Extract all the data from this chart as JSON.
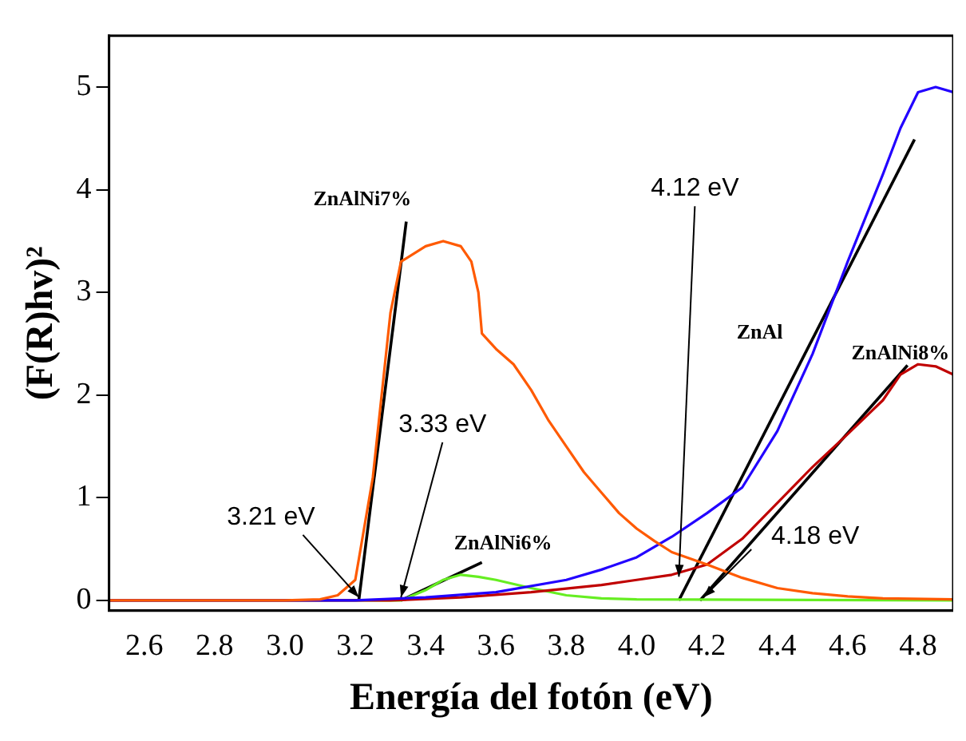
{
  "chart_data": {
    "type": "line",
    "xlabel": "Energía del fotón (eV)",
    "ylabel": "(F(R)hv)²",
    "xlim": [
      2.5,
      4.9
    ],
    "ylim": [
      -0.1,
      5.5
    ],
    "xticks": [
      2.6,
      2.8,
      {
        "value": 3.0,
        "label": "3.0"
      },
      3.2,
      3.4,
      3.6,
      3.8,
      {
        "value": 4.0,
        "label": "4.0"
      },
      4.2,
      4.4,
      4.6,
      4.8
    ],
    "yticks": [
      0,
      1,
      2,
      3,
      4,
      5
    ],
    "grid": false,
    "legend": false,
    "marker": "none",
    "line_style": "solid",
    "series": [
      {
        "name": "ZnAlNi7%",
        "color": "#ff5a00",
        "x": [
          2.5,
          3.0,
          3.1,
          3.15,
          3.2,
          3.25,
          3.3,
          3.33,
          3.4,
          3.45,
          3.5,
          3.53,
          3.55,
          3.56,
          3.6,
          3.65,
          3.7,
          3.75,
          3.8,
          3.85,
          3.9,
          3.95,
          4.0,
          4.05,
          4.1,
          4.2,
          4.3,
          4.4,
          4.5,
          4.6,
          4.7,
          4.9
        ],
        "values": [
          0,
          0,
          0.01,
          0.05,
          0.2,
          1.2,
          2.8,
          3.3,
          3.45,
          3.5,
          3.45,
          3.3,
          3.0,
          2.6,
          2.45,
          2.3,
          2.05,
          1.75,
          1.5,
          1.25,
          1.05,
          0.85,
          0.7,
          0.58,
          0.47,
          0.35,
          0.22,
          0.12,
          0.07,
          0.04,
          0.02,
          0.01
        ]
      },
      {
        "name": "ZnAl",
        "color": "#2200ff",
        "x": [
          2.5,
          3.2,
          3.4,
          3.6,
          3.8,
          3.9,
          4.0,
          4.1,
          4.2,
          4.3,
          4.4,
          4.5,
          4.6,
          4.7,
          4.75,
          4.8,
          4.85,
          4.9
        ],
        "values": [
          0,
          0,
          0.03,
          0.08,
          0.2,
          0.3,
          0.42,
          0.62,
          0.85,
          1.1,
          1.65,
          2.4,
          3.3,
          4.15,
          4.6,
          4.95,
          5.0,
          4.95
        ]
      },
      {
        "name": "ZnAlNi8%",
        "color": "#c00000",
        "x": [
          2.5,
          3.3,
          3.5,
          3.7,
          3.9,
          4.0,
          4.1,
          4.2,
          4.3,
          4.4,
          4.5,
          4.6,
          4.7,
          4.75,
          4.8,
          4.85,
          4.9
        ],
        "values": [
          0,
          0,
          0.03,
          0.08,
          0.15,
          0.2,
          0.25,
          0.35,
          0.6,
          0.95,
          1.3,
          1.62,
          1.95,
          2.2,
          2.3,
          2.28,
          2.2
        ]
      },
      {
        "name": "ZnAlNi6%",
        "color": "#66ee22",
        "x": [
          2.5,
          3.33,
          3.4,
          3.45,
          3.5,
          3.55,
          3.6,
          3.7,
          3.8,
          3.9,
          4.0,
          4.9
        ],
        "values": [
          0,
          0,
          0.1,
          0.2,
          0.25,
          0.23,
          0.2,
          0.12,
          0.05,
          0.02,
          0.01,
          0
        ]
      },
      {
        "color": "#000000",
        "x": [
          3.21,
          3.345
        ],
        "values": [
          0,
          3.69
        ]
      },
      {
        "color": "#000000",
        "x": [
          3.33,
          3.56
        ],
        "values": [
          0,
          0.37
        ]
      },
      {
        "color": "#000000",
        "x": [
          4.12,
          4.79
        ],
        "values": [
          0,
          4.49
        ]
      },
      {
        "color": "#000000",
        "x": [
          4.18,
          4.77
        ],
        "values": [
          0,
          2.29
        ]
      }
    ],
    "annotations": [
      {
        "text": "3.21 eV",
        "x": 3.21,
        "y": 0
      },
      {
        "text": "3.33 eV",
        "x": 3.33,
        "y": 0
      },
      {
        "text": "4.12 eV",
        "x": 4.12,
        "y": 0.2
      },
      {
        "text": "4.18 eV",
        "x": 4.19,
        "y": 0
      }
    ]
  }
}
